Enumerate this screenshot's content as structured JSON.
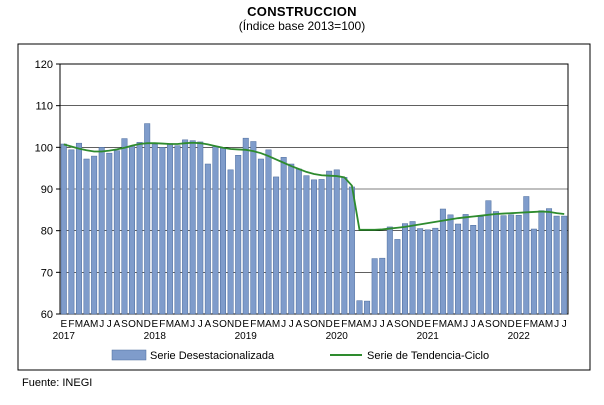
{
  "source_note": "Fuente: INEGI",
  "chart_data": {
    "type": "bar",
    "title": "CONSTRUCCION",
    "subtitle": "(Índice base 2013=100)",
    "ylim": [
      60,
      120
    ],
    "yticks": [
      "60",
      "70",
      "80",
      "90",
      "100",
      "110",
      "120"
    ],
    "grid": true,
    "legend_position": "bottom",
    "month_letters": [
      "E",
      "F",
      "M",
      "A",
      "M",
      "J",
      "J",
      "A",
      "S",
      "O",
      "N",
      "D"
    ],
    "years": [
      "2017",
      "2018",
      "2019",
      "2020",
      "2021",
      "2022"
    ],
    "bar_color": "#7f9ccb",
    "line_color": "#2e8b2e",
    "series": [
      {
        "name": "Serie Desestacionalizada",
        "type": "bar",
        "values": [
          100.8,
          99.4,
          101.0,
          97.2,
          97.9,
          100.0,
          98.6,
          99.2,
          102.1,
          100.2,
          101.2,
          105.7,
          100.7,
          100.0,
          100.9,
          100.4,
          101.8,
          101.6,
          101.3,
          96.0,
          100.2,
          99.8,
          94.6,
          98.1,
          102.2,
          101.4,
          97.2,
          99.4,
          92.9,
          97.6,
          96.0,
          94.8,
          93.2,
          92.2,
          92.3,
          94.3,
          94.6,
          92.8,
          90.5,
          63.2,
          63.1,
          73.3,
          73.4,
          80.9,
          77.9,
          81.7,
          82.2,
          80.5,
          80.2,
          80.6,
          85.2,
          83.8,
          81.6,
          83.9,
          81.3,
          83.4,
          87.2,
          84.6,
          83.6,
          83.8,
          83.7,
          88.2,
          80.4,
          84.8,
          85.3,
          83.5,
          83.5
        ]
      },
      {
        "name": "Serie de Tendencia-Ciclo",
        "type": "line",
        "values": [
          100.7,
          100.2,
          99.7,
          99.3,
          99.0,
          99.0,
          99.2,
          99.5,
          99.9,
          100.4,
          100.8,
          101.0,
          101.0,
          100.9,
          100.8,
          100.8,
          101.0,
          101.1,
          101.0,
          100.7,
          100.3,
          99.9,
          99.6,
          99.5,
          99.4,
          99.1,
          98.6,
          97.9,
          97.1,
          96.3,
          95.5,
          94.8,
          94.1,
          93.6,
          93.3,
          93.2,
          93.1,
          92.8,
          90.8,
          80.2,
          80.2,
          80.2,
          80.3,
          80.5,
          80.7,
          80.9,
          81.2,
          81.5,
          81.8,
          82.1,
          82.4,
          82.7,
          83.0,
          83.2,
          83.4,
          83.6,
          83.8,
          84.0,
          84.1,
          84.2,
          84.3,
          84.4,
          84.5,
          84.6,
          84.5,
          84.2,
          84.0
        ]
      }
    ]
  }
}
